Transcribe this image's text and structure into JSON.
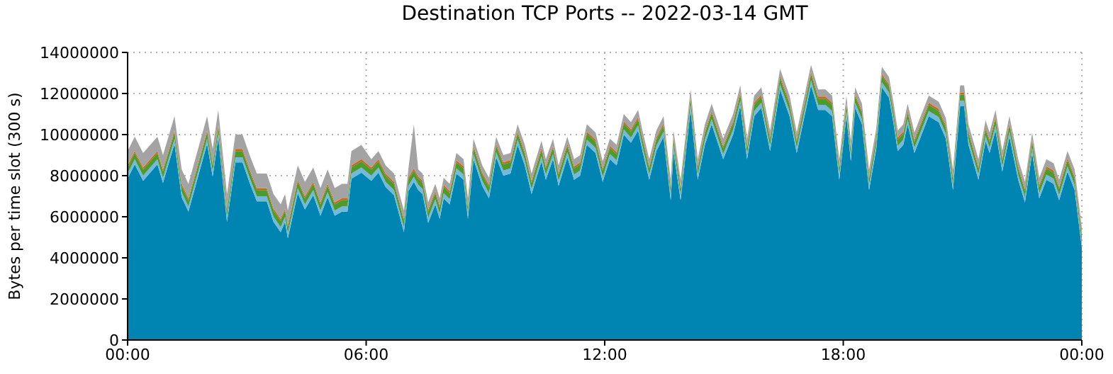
{
  "chart_data": {
    "type": "area",
    "title": "Destination TCP Ports -- 2022-03-14 GMT",
    "ylabel": "Bytes per time slot (300 s)",
    "stacked": true,
    "grid": true,
    "x": [
      0,
      0.18,
      0.39,
      0.75,
      0.89,
      1.18,
      1.36,
      1.53,
      2.0,
      2.14,
      2.28,
      2.5,
      2.71,
      2.89,
      3.07,
      3.25,
      3.5,
      3.67,
      3.85,
      3.96,
      4.03,
      4.28,
      4.46,
      4.67,
      4.85,
      5.03,
      5.21,
      5.39,
      5.53,
      5.63,
      5.88,
      6.13,
      6.31,
      6.49,
      6.7,
      6.95,
      7.06,
      7.2,
      7.31,
      7.42,
      7.56,
      7.74,
      7.85,
      7.95,
      8.1,
      8.27,
      8.45,
      8.56,
      8.7,
      8.92,
      9.09,
      9.27,
      9.45,
      9.63,
      9.81,
      9.99,
      10.16,
      10.41,
      10.52,
      10.7,
      10.84,
      11.06,
      11.23,
      11.38,
      11.55,
      11.77,
      11.95,
      12.13,
      12.3,
      12.48,
      12.66,
      12.84,
      12.95,
      13.12,
      13.3,
      13.48,
      13.66,
      13.73,
      13.91,
      14.16,
      14.34,
      14.52,
      14.69,
      14.98,
      15.23,
      15.41,
      15.58,
      15.76,
      15.94,
      16.16,
      16.41,
      16.65,
      16.83,
      17.19,
      17.37,
      17.55,
      17.72,
      17.9,
      18.08,
      18.19,
      18.3,
      18.47,
      18.65,
      18.83,
      18.97,
      19.15,
      19.26,
      19.37,
      19.51,
      19.62,
      19.79,
      19.97,
      20.15,
      20.4,
      20.58,
      20.76,
      20.94,
      21.04,
      21.15,
      21.4,
      21.58,
      21.68,
      21.83,
      22.0,
      22.18,
      22.4,
      22.57,
      22.75,
      22.93,
      23.11,
      23.29,
      23.43,
      23.64,
      23.82,
      24
    ],
    "xlim": [
      0,
      24
    ],
    "xticks": [
      {
        "value": 0,
        "label": "00:00"
      },
      {
        "value": 6,
        "label": "06:00"
      },
      {
        "value": 12,
        "label": "12:00"
      },
      {
        "value": 18,
        "label": "18:00"
      },
      {
        "value": 24,
        "label": "00:00"
      }
    ],
    "ylim": [
      0,
      14000000
    ],
    "yticks": [
      0,
      2000000,
      4000000,
      6000000,
      8000000,
      10000000,
      12000000,
      14000000
    ],
    "series": [
      {
        "color": "#0085b3",
        "values": [
          7850000,
          8550000,
          7750000,
          8550000,
          7650000,
          9550000,
          6950000,
          6250000,
          9550000,
          7950000,
          9850000,
          5750000,
          8650000,
          8650000,
          7650000,
          6750000,
          6750000,
          5750000,
          5250000,
          5750000,
          4950000,
          7150000,
          6350000,
          7050000,
          6050000,
          6950000,
          6050000,
          6250000,
          6250000,
          7850000,
          8150000,
          7750000,
          8150000,
          7450000,
          7050000,
          5250000,
          7250000,
          7700000,
          7300000,
          7100000,
          5700000,
          6600000,
          5900000,
          6900000,
          6600000,
          8100000,
          7800000,
          5900000,
          8800000,
          7500000,
          6900000,
          8900000,
          8000000,
          8100000,
          9500000,
          8500000,
          7100000,
          8700000,
          7800000,
          8800000,
          7500000,
          8900000,
          7800000,
          8000000,
          9500000,
          9100000,
          7700000,
          8800000,
          8500000,
          10000000,
          9600000,
          10200000,
          9200000,
          7800000,
          9200000,
          9900000,
          6800000,
          9200000,
          6800000,
          11200000,
          7800000,
          9500000,
          10500000,
          8800000,
          10000000,
          11400000,
          8800000,
          10900000,
          11300000,
          9200000,
          12200000,
          10900000,
          9100000,
          12400000,
          11200000,
          11200000,
          10900000,
          7800000,
          10900000,
          8700000,
          11300000,
          10500000,
          7300000,
          9300000,
          12300000,
          11800000,
          10600000,
          9200000,
          9500000,
          10500000,
          9100000,
          10000000,
          10900000,
          10600000,
          9800000,
          7300000,
          11400000,
          11400000,
          9500000,
          7800000,
          9700000,
          9100000,
          10200000,
          8200000,
          9900000,
          7800000,
          6700000,
          9100000,
          6900000,
          7800000,
          7600000,
          6800000,
          8200000,
          7300000,
          4500000
        ]
      },
      {
        "color": "#74b9d8",
        "values": [
          250000,
          250000,
          250000,
          250000,
          250000,
          250000,
          250000,
          250000,
          250000,
          250000,
          250000,
          250000,
          250000,
          250000,
          250000,
          250000,
          250000,
          250000,
          250000,
          250000,
          250000,
          250000,
          250000,
          250000,
          250000,
          250000,
          250000,
          250000,
          250000,
          250000,
          250000,
          250000,
          250000,
          250000,
          250000,
          250000,
          250000,
          250000,
          250000,
          250000,
          250000,
          250000,
          250000,
          250000,
          250000,
          250000,
          250000,
          250000,
          250000,
          250000,
          250000,
          250000,
          250000,
          250000,
          250000,
          250000,
          250000,
          250000,
          250000,
          250000,
          250000,
          250000,
          250000,
          250000,
          250000,
          250000,
          250000,
          250000,
          250000,
          250000,
          250000,
          250000,
          250000,
          250000,
          250000,
          250000,
          250000,
          250000,
          250000,
          250000,
          250000,
          250000,
          250000,
          250000,
          250000,
          250000,
          250000,
          250000,
          250000,
          250000,
          250000,
          250000,
          250000,
          250000,
          250000,
          250000,
          250000,
          250000,
          250000,
          250000,
          250000,
          250000,
          250000,
          250000,
          250000,
          250000,
          250000,
          250000,
          250000,
          250000,
          250000,
          250000,
          250000,
          250000,
          250000,
          250000,
          250000,
          250000,
          250000,
          250000,
          250000,
          250000,
          250000,
          250000,
          250000,
          250000,
          250000,
          250000,
          250000,
          250000,
          250000,
          250000,
          250000,
          250000,
          250000
        ]
      },
      {
        "color": "#4e9a2a",
        "values": [
          300000,
          300000,
          300000,
          300000,
          300000,
          300000,
          300000,
          300000,
          300000,
          300000,
          300000,
          300000,
          300000,
          300000,
          300000,
          300000,
          300000,
          300000,
          300000,
          300000,
          300000,
          300000,
          300000,
          300000,
          300000,
          300000,
          300000,
          300000,
          300000,
          300000,
          300000,
          300000,
          300000,
          300000,
          300000,
          300000,
          300000,
          300000,
          300000,
          300000,
          300000,
          300000,
          300000,
          300000,
          300000,
          300000,
          300000,
          300000,
          300000,
          300000,
          300000,
          300000,
          300000,
          300000,
          300000,
          300000,
          300000,
          300000,
          300000,
          300000,
          300000,
          300000,
          300000,
          300000,
          300000,
          300000,
          300000,
          300000,
          300000,
          300000,
          300000,
          300000,
          300000,
          300000,
          300000,
          300000,
          300000,
          300000,
          300000,
          300000,
          300000,
          300000,
          300000,
          300000,
          300000,
          300000,
          300000,
          300000,
          300000,
          300000,
          300000,
          300000,
          300000,
          300000,
          300000,
          300000,
          300000,
          300000,
          300000,
          300000,
          300000,
          300000,
          300000,
          300000,
          300000,
          300000,
          300000,
          300000,
          300000,
          300000,
          300000,
          300000,
          300000,
          300000,
          300000,
          300000,
          300000,
          300000,
          300000,
          300000,
          300000,
          300000,
          300000,
          300000,
          300000,
          300000,
          300000,
          300000,
          300000,
          300000,
          300000,
          300000,
          300000,
          300000,
          300000
        ]
      },
      {
        "color": "#c8641e",
        "values": [
          100000,
          100000,
          100000,
          100000,
          100000,
          100000,
          100000,
          100000,
          100000,
          100000,
          100000,
          100000,
          100000,
          100000,
          100000,
          100000,
          100000,
          100000,
          100000,
          100000,
          100000,
          100000,
          100000,
          100000,
          100000,
          100000,
          100000,
          100000,
          100000,
          100000,
          100000,
          100000,
          100000,
          100000,
          100000,
          100000,
          100000,
          100000,
          100000,
          100000,
          100000,
          100000,
          100000,
          100000,
          100000,
          100000,
          100000,
          100000,
          100000,
          100000,
          100000,
          100000,
          100000,
          100000,
          100000,
          100000,
          100000,
          100000,
          100000,
          100000,
          100000,
          100000,
          100000,
          100000,
          100000,
          100000,
          100000,
          100000,
          100000,
          100000,
          100000,
          100000,
          100000,
          100000,
          100000,
          100000,
          100000,
          100000,
          100000,
          100000,
          100000,
          100000,
          100000,
          100000,
          100000,
          100000,
          100000,
          100000,
          100000,
          100000,
          100000,
          100000,
          100000,
          100000,
          100000,
          100000,
          100000,
          100000,
          100000,
          100000,
          100000,
          100000,
          100000,
          100000,
          100000,
          100000,
          100000,
          100000,
          100000,
          100000,
          100000,
          100000,
          100000,
          100000,
          100000,
          100000,
          100000,
          100000,
          100000,
          100000,
          100000,
          100000,
          100000,
          100000,
          100000,
          100000,
          100000,
          100000,
          100000,
          100000,
          100000,
          100000,
          100000,
          100000,
          100000
        ]
      },
      {
        "color": "#a3a3a3",
        "values": [
          700000,
          700000,
          700000,
          700000,
          700000,
          700000,
          700000,
          700000,
          700000,
          700000,
          700000,
          700000,
          700000,
          700000,
          700000,
          700000,
          700000,
          700000,
          700000,
          700000,
          700000,
          700000,
          700000,
          700000,
          700000,
          700000,
          700000,
          700000,
          700000,
          700000,
          700000,
          400000,
          400000,
          400000,
          400000,
          400000,
          400000,
          2150000,
          350000,
          350000,
          350000,
          350000,
          350000,
          350000,
          350000,
          350000,
          350000,
          350000,
          350000,
          350000,
          350000,
          350000,
          350000,
          350000,
          350000,
          350000,
          350000,
          350000,
          350000,
          350000,
          350000,
          350000,
          350000,
          350000,
          350000,
          350000,
          350000,
          350000,
          350000,
          350000,
          350000,
          350000,
          350000,
          350000,
          350000,
          350000,
          350000,
          350000,
          350000,
          350000,
          350000,
          350000,
          350000,
          350000,
          350000,
          350000,
          350000,
          350000,
          350000,
          350000,
          350000,
          350000,
          350000,
          350000,
          350000,
          350000,
          350000,
          350000,
          350000,
          350000,
          350000,
          350000,
          350000,
          350000,
          350000,
          350000,
          350000,
          350000,
          350000,
          350000,
          350000,
          350000,
          350000,
          350000,
          350000,
          350000,
          350000,
          350000,
          350000,
          350000,
          350000,
          350000,
          350000,
          350000,
          350000,
          350000,
          350000,
          350000,
          350000,
          350000,
          350000,
          350000,
          350000,
          350000,
          350000
        ]
      }
    ]
  }
}
